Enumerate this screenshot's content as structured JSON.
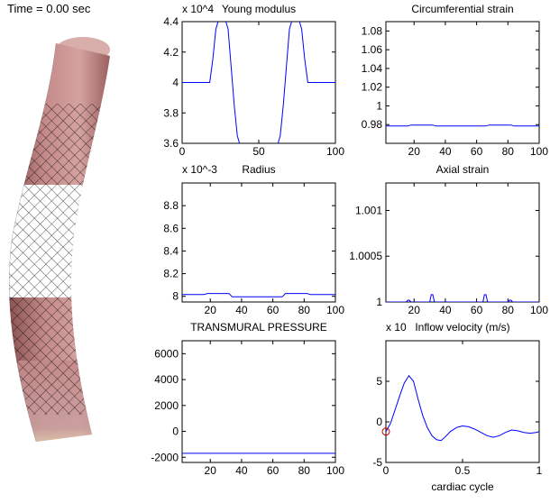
{
  "time_label": "Time = 0.00 sec",
  "colors": {
    "line": "#0000ff",
    "marker": "#cc0000",
    "axis": "#000000",
    "tube": "#c48a8a",
    "tube_light": "#e8d0b4",
    "stent": "#000000"
  },
  "chart_data": [
    {
      "id": "young",
      "type": "line",
      "title": "Young modulus",
      "exponent": "x 10^4",
      "xlim": [
        0,
        100
      ],
      "ylim": [
        3.6,
        4.4
      ],
      "xticks": [
        0,
        50,
        100
      ],
      "yticks": [
        3.6,
        3.8,
        4,
        4.2,
        4.4
      ],
      "ytick_labels": [
        "3.6",
        "3.8",
        "4",
        "4.2",
        "4.4"
      ],
      "x": [
        0,
        18,
        20,
        22,
        24,
        26,
        28,
        30,
        32,
        34,
        36,
        38,
        40,
        60,
        62,
        64,
        66,
        68,
        70,
        72,
        74,
        76,
        78,
        80,
        82,
        100
      ],
      "y": [
        4.0,
        4.0,
        4.15,
        4.35,
        4.42,
        4.42,
        4.42,
        4.35,
        4.1,
        3.85,
        3.65,
        3.58,
        3.56,
        3.56,
        3.58,
        3.65,
        3.85,
        4.1,
        4.35,
        4.42,
        4.42,
        4.42,
        4.35,
        4.15,
        4.0,
        4.0
      ]
    },
    {
      "id": "circ",
      "type": "line",
      "title": "Circumferential strain",
      "xlim": [
        2,
        100
      ],
      "ylim": [
        0.96,
        1.09
      ],
      "xticks": [
        20,
        40,
        60,
        80,
        100
      ],
      "yticks": [
        0.98,
        1,
        1.02,
        1.04,
        1.06,
        1.08
      ],
      "ytick_labels": [
        "0.98",
        "1",
        "1.02",
        "1.04",
        "1.06",
        "1.08"
      ],
      "x": [
        2,
        16,
        18,
        32,
        34,
        66,
        68,
        82,
        84,
        100
      ],
      "y": [
        0.9785,
        0.9785,
        0.9795,
        0.9795,
        0.9785,
        0.9785,
        0.9795,
        0.9795,
        0.9785,
        0.9785
      ]
    },
    {
      "id": "radius",
      "type": "line",
      "title": "Radius",
      "exponent": "x 10^-3",
      "xlim": [
        2,
        100
      ],
      "ylim": [
        7.95,
        9.0
      ],
      "xticks": [
        20,
        40,
        60,
        80,
        100
      ],
      "yticks": [
        8,
        8.2,
        8.4,
        8.6,
        8.8
      ],
      "ytick_labels": [
        "8",
        "8.2",
        "8.4",
        "8.6",
        "8.8"
      ],
      "x": [
        2,
        16,
        18,
        32,
        34,
        66,
        68,
        82,
        84,
        100
      ],
      "y": [
        8.015,
        8.015,
        8.025,
        8.025,
        7.995,
        7.995,
        8.025,
        8.025,
        8.015,
        8.015
      ]
    },
    {
      "id": "axial",
      "type": "line",
      "title": "Axial strain",
      "xlim": [
        2,
        100
      ],
      "ylim": [
        1.0,
        1.0013
      ],
      "xticks": [
        20,
        40,
        60,
        80,
        100
      ],
      "yticks": [
        1,
        1.0005,
        1.001
      ],
      "ytick_labels": [
        "1",
        "1.0005",
        "1.001"
      ],
      "x": [
        2,
        15,
        16,
        17,
        18,
        30,
        31,
        32,
        33,
        64,
        65,
        66,
        67,
        80,
        81,
        82,
        83,
        100
      ],
      "y": [
        1.0,
        1.0,
        1.00002,
        1.00002,
        1.0,
        1.0,
        1.00008,
        1.00008,
        1.0,
        1.0,
        1.00008,
        1.00008,
        1.0,
        1.0,
        1.00002,
        1.00002,
        1.0,
        1.0
      ]
    },
    {
      "id": "pressure",
      "type": "line",
      "title": "TRANSMURAL PRESSURE",
      "xlim": [
        2,
        100
      ],
      "ylim": [
        -2400,
        7000
      ],
      "xticks": [
        20,
        40,
        60,
        80,
        100
      ],
      "yticks": [
        -2000,
        0,
        2000,
        4000,
        6000
      ],
      "ytick_labels": [
        "-2000",
        "0",
        "2000",
        "4000",
        "6000"
      ],
      "x": [
        2,
        100
      ],
      "y": [
        -1700,
        -1700
      ]
    },
    {
      "id": "inflow",
      "type": "line",
      "title": "Inflow velocity (m/s)",
      "exponent": "x 10",
      "xlabel": "cardiac cycle",
      "xlim": [
        0,
        1
      ],
      "ylim": [
        -5,
        10
      ],
      "xticks": [
        0,
        0.5,
        1
      ],
      "xtick_labels": [
        "0",
        "0.5",
        "1"
      ],
      "yticks": [
        -5,
        0,
        5
      ],
      "ytick_labels": [
        "-5",
        "0",
        "5"
      ],
      "x": [
        0,
        0.03,
        0.06,
        0.09,
        0.12,
        0.15,
        0.18,
        0.21,
        0.24,
        0.27,
        0.3,
        0.33,
        0.36,
        0.39,
        0.42,
        0.46,
        0.5,
        0.54,
        0.58,
        0.62,
        0.66,
        0.7,
        0.74,
        0.78,
        0.82,
        0.86,
        0.9,
        0.94,
        0.98,
        1.0
      ],
      "y": [
        -1.2,
        -0.2,
        1.5,
        3.2,
        4.8,
        5.7,
        5.0,
        2.8,
        0.8,
        -0.7,
        -1.7,
        -2.2,
        -2.3,
        -1.8,
        -1.2,
        -0.7,
        -0.5,
        -0.6,
        -0.9,
        -1.3,
        -1.7,
        -1.9,
        -1.7,
        -1.3,
        -1.0,
        -1.1,
        -1.3,
        -1.4,
        -1.3,
        -1.2
      ],
      "marker": {
        "x": 0.0,
        "y": -1.2
      }
    }
  ]
}
